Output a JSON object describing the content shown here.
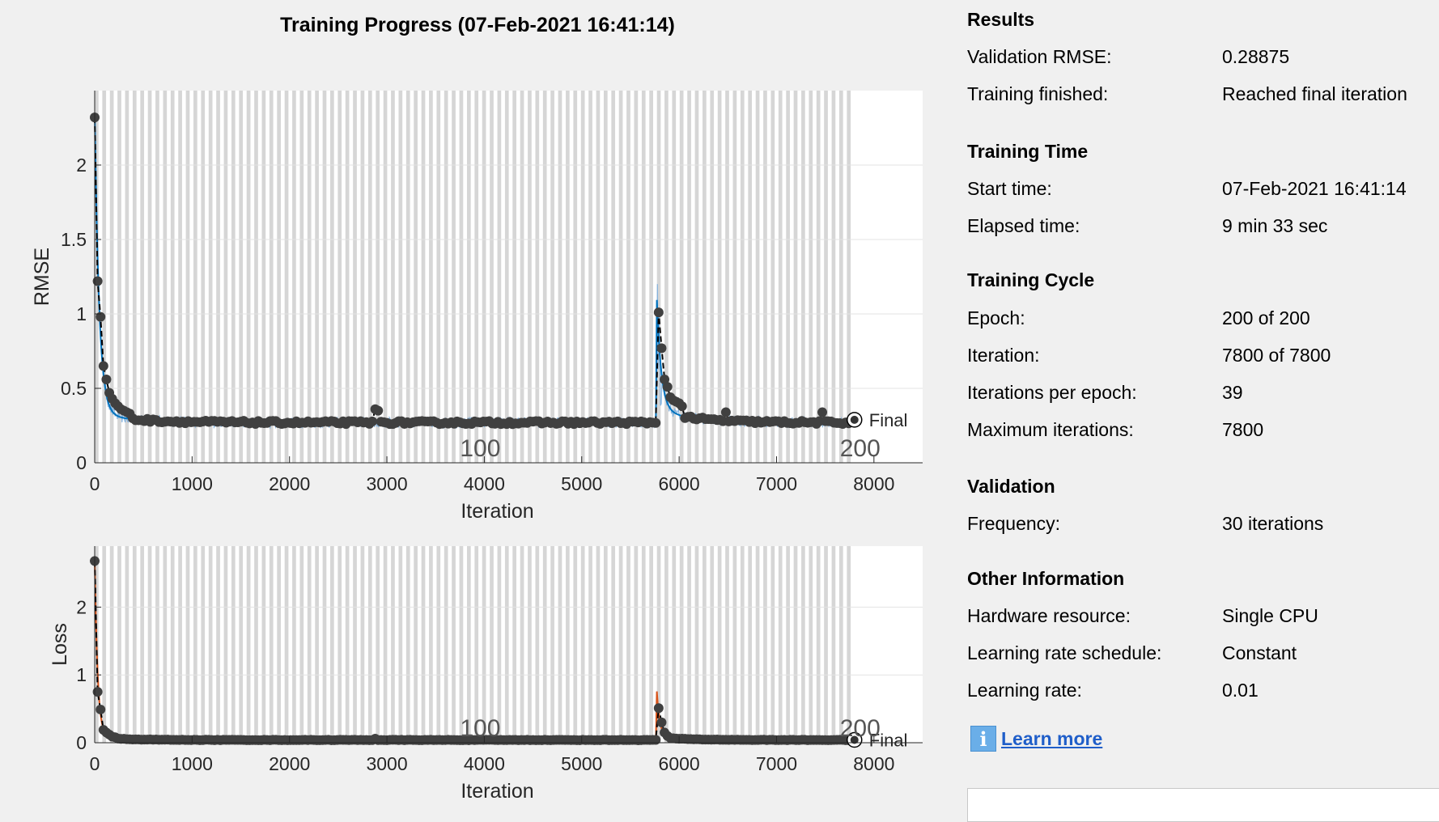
{
  "title": "Training Progress (07-Feb-2021 16:41:14)",
  "chart_data": [
    {
      "type": "line",
      "ylabel": "RMSE",
      "xlabel": "Iteration",
      "xlim": [
        0,
        8500
      ],
      "ylim": [
        0,
        2.5
      ],
      "xticks": [
        0,
        1000,
        2000,
        3000,
        4000,
        5000,
        6000,
        7000,
        8000
      ],
      "yticks": [
        0,
        0.5,
        1,
        1.5,
        2
      ],
      "ytick_labels": [
        "0",
        "0.5",
        "1",
        "1.5",
        "2"
      ],
      "epoch_labels": [
        {
          "iteration": 3900,
          "label": "100"
        },
        {
          "iteration": 7800,
          "label": "200"
        }
      ],
      "final_label": "Final",
      "final_value": 0.28875,
      "grid": true,
      "validation_points": {
        "x": [
          0,
          30,
          60,
          90,
          120,
          150,
          180,
          210,
          240,
          270,
          300,
          330,
          360,
          2880,
          2910,
          5790,
          5820,
          5850,
          5880,
          5910,
          5940,
          5970,
          6000,
          6030,
          6480,
          7470,
          7800
        ],
        "y": [
          2.32,
          1.22,
          0.98,
          0.65,
          0.56,
          0.47,
          0.43,
          0.4,
          0.38,
          0.36,
          0.35,
          0.34,
          0.33,
          0.36,
          0.35,
          1.01,
          0.77,
          0.56,
          0.51,
          0.44,
          0.42,
          0.41,
          0.4,
          0.38,
          0.34,
          0.34,
          0.29
        ]
      }
    },
    {
      "type": "line",
      "ylabel": "Loss",
      "xlabel": "Iteration",
      "xlim": [
        0,
        8500
      ],
      "ylim": [
        0,
        2.9
      ],
      "xticks": [
        0,
        1000,
        2000,
        3000,
        4000,
        5000,
        6000,
        7000,
        8000
      ],
      "yticks": [
        0,
        1,
        2
      ],
      "ytick_labels": [
        "0",
        "1",
        "2"
      ],
      "epoch_labels": [
        {
          "iteration": 3900,
          "label": "100"
        },
        {
          "iteration": 7800,
          "label": "200"
        }
      ],
      "final_label": "Final",
      "final_value": 0.042,
      "grid": true,
      "validation_points": {
        "x": [
          0,
          30,
          60,
          90,
          120,
          150,
          180,
          210,
          2880,
          5790,
          5820,
          5850,
          5880,
          7800
        ],
        "y": [
          2.68,
          0.75,
          0.49,
          0.19,
          0.15,
          0.12,
          0.09,
          0.08,
          0.06,
          0.51,
          0.3,
          0.15,
          0.1,
          0.04
        ]
      }
    }
  ],
  "info": {
    "results": {
      "heading": "Results",
      "validation_rmse_label": "Validation RMSE:",
      "validation_rmse_value": "0.28875",
      "training_finished_label": "Training finished:",
      "training_finished_value": "Reached final iteration"
    },
    "training_time": {
      "heading": "Training Time",
      "start_time_label": "Start time:",
      "start_time_value": "07-Feb-2021 16:41:14",
      "elapsed_time_label": "Elapsed time:",
      "elapsed_time_value": "9 min 33 sec"
    },
    "training_cycle": {
      "heading": "Training Cycle",
      "epoch_label": "Epoch:",
      "epoch_value": "200 of 200",
      "iteration_label": "Iteration:",
      "iteration_value": "7800 of 7800",
      "iterations_per_epoch_label": "Iterations per epoch:",
      "iterations_per_epoch_value": "39",
      "max_iterations_label": "Maximum iterations:",
      "max_iterations_value": "7800"
    },
    "validation": {
      "heading": "Validation",
      "frequency_label": "Frequency:",
      "frequency_value": "30 iterations"
    },
    "other": {
      "heading": "Other Information",
      "hardware_label": "Hardware resource:",
      "hardware_value": "Single CPU",
      "lr_schedule_label": "Learning rate schedule:",
      "lr_schedule_value": "Constant",
      "lr_label": "Learning rate:",
      "lr_value": "0.01"
    },
    "learn_more": {
      "icon": "info-icon",
      "icon_glyph": "i",
      "label": "Learn more"
    }
  },
  "colors": {
    "background": "#f0f0f0",
    "rmse_line": "#0072bd",
    "rmse_raw": "#6fa8dc",
    "loss_line": "#d95319",
    "loss_raw": "#eba07f",
    "validation": "#404040",
    "epoch_band": "#d6d6d6"
  }
}
